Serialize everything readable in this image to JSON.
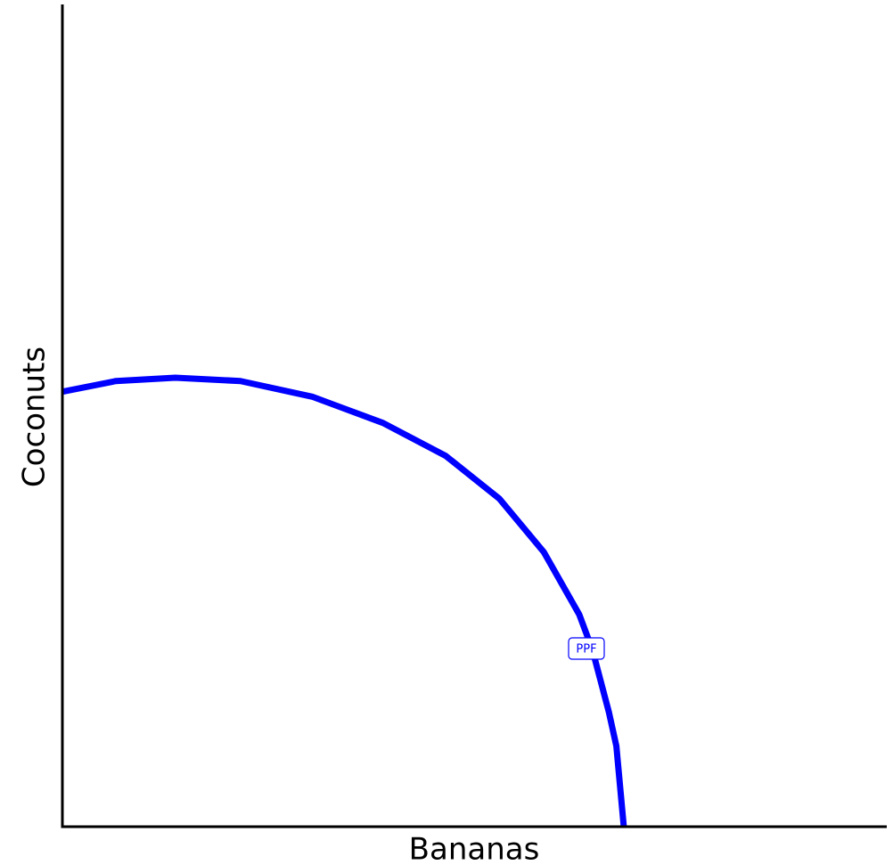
{
  "chart_data": {
    "type": "line",
    "x_label": "Bananas",
    "y_label": "Coconuts",
    "x": [
      0,
      6.5,
      13.7,
      21.6,
      30.3,
      38.9,
      46.5,
      53.0,
      58.4,
      62.7,
      64.3,
      66.3,
      67.2,
      68.1
    ],
    "series": [
      {
        "name": "PPF",
        "color": "#0000ff",
        "values": [
          52.9,
          54.2,
          54.6,
          54.2,
          52.3,
          49.1,
          45.1,
          39.9,
          33.4,
          25.8,
          21.5,
          13.9,
          9.8,
          0
        ]
      }
    ],
    "xlim": [
      0,
      100
    ],
    "ylim": [
      0,
      100
    ]
  }
}
